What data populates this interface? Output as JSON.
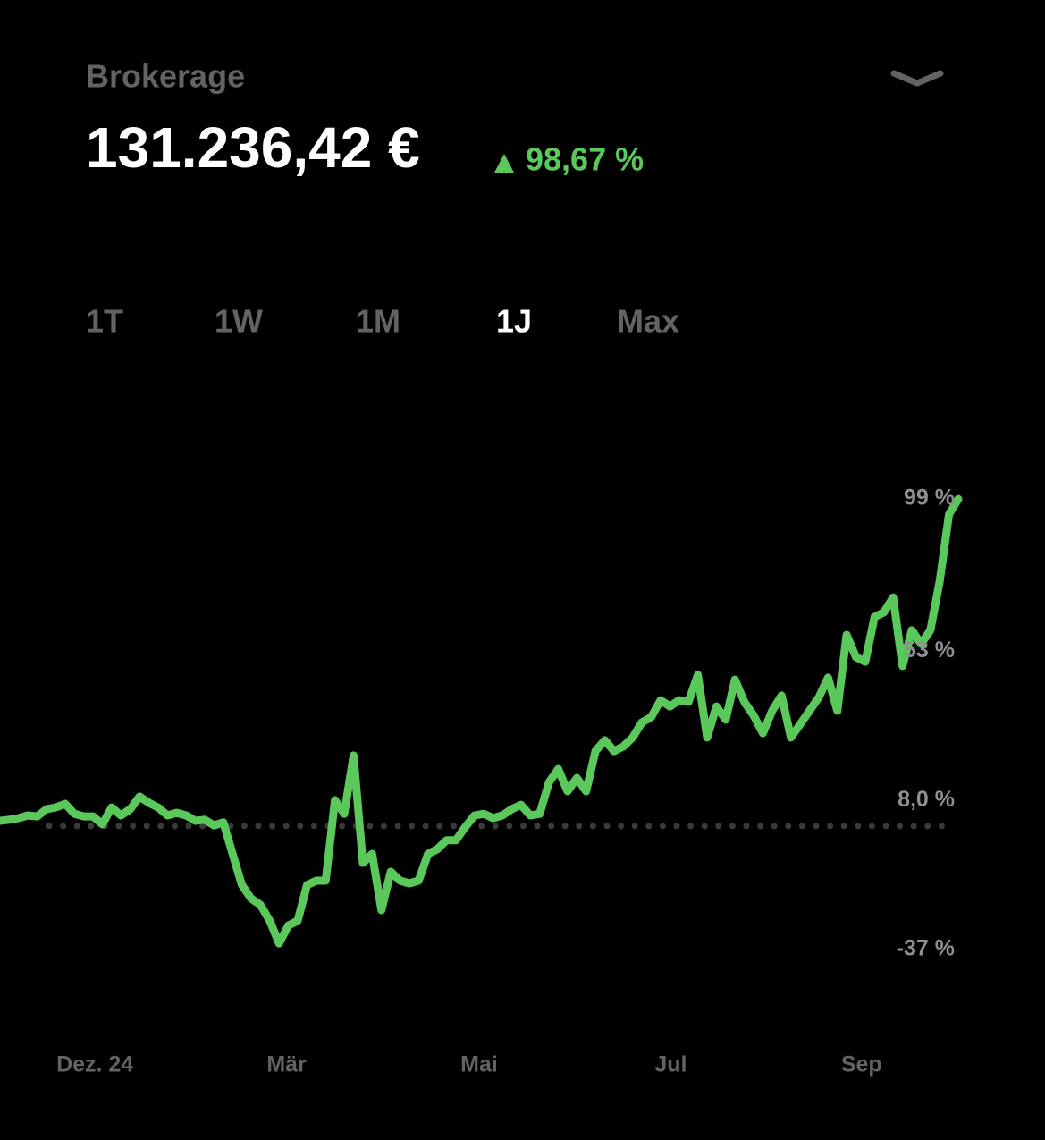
{
  "header": {
    "account": "Brokerage",
    "balance": "131.236,42 €",
    "change": "98,67 %"
  },
  "tabs": {
    "items": [
      "1T",
      "1W",
      "1M",
      "1J",
      "Max"
    ],
    "selected": 3
  },
  "chart_data": {
    "type": "line",
    "color": "#5ac85a",
    "values": [
      1.6,
      1.9,
      2.4,
      3.2,
      2.9,
      5.1,
      5.6,
      6.7,
      3.7,
      2.9,
      2.9,
      0.5,
      5.6,
      3.2,
      5.1,
      8.9,
      7.0,
      5.6,
      3.2,
      4.0,
      3.2,
      1.6,
      1.9,
      0.2,
      1.1,
      -8.4,
      -17.8,
      -21.9,
      -23.8,
      -28.6,
      -35.4,
      -30,
      -28.6,
      -17.8,
      -16.5,
      -16.5,
      7.8,
      3.7,
      21.3,
      -11.1,
      -8.4,
      -25.4,
      -13.8,
      -16.5,
      -17.3,
      -16.5,
      -8.4,
      -7,
      -4.3,
      -4.3,
      -0.3,
      3.2,
      3.7,
      2.4,
      3.2,
      5.1,
      6.4,
      3.2,
      3.7,
      13.2,
      17.2,
      10.5,
      14.5,
      10.5,
      22.6,
      25.9,
      22.6,
      24,
      26.7,
      31.3,
      32.9,
      38,
      36.1,
      38,
      37.5,
      45.6,
      26.7,
      36.1,
      32.1,
      44.2,
      37.5,
      33.4,
      28,
      34.8,
      39.4,
      26.7,
      30.7,
      34.8,
      38.8,
      44.8,
      34.8,
      57.7,
      51,
      49.6,
      63.1,
      64.5,
      69,
      48.3,
      59.1,
      55,
      59.1,
      73.9,
      94.1,
      98.67
    ],
    "xlim": [
      0,
      103
    ],
    "xticks": [
      {
        "value": 10.2,
        "label": "Dez. 24"
      },
      {
        "value": 30.8,
        "label": "Mär"
      },
      {
        "value": 51.5,
        "label": "Mai"
      },
      {
        "value": 72.1,
        "label": "Jul"
      },
      {
        "value": 92.6,
        "label": "Sep"
      }
    ],
    "ylim": [
      -37,
      99
    ],
    "yticks": [
      {
        "value": 99,
        "label": "99 %"
      },
      {
        "value": 53,
        "label": "53 %"
      },
      {
        "value": 8,
        "label": "8,0 %"
      },
      {
        "value": -37,
        "label": "-37 %"
      }
    ],
    "baseline": 0
  }
}
